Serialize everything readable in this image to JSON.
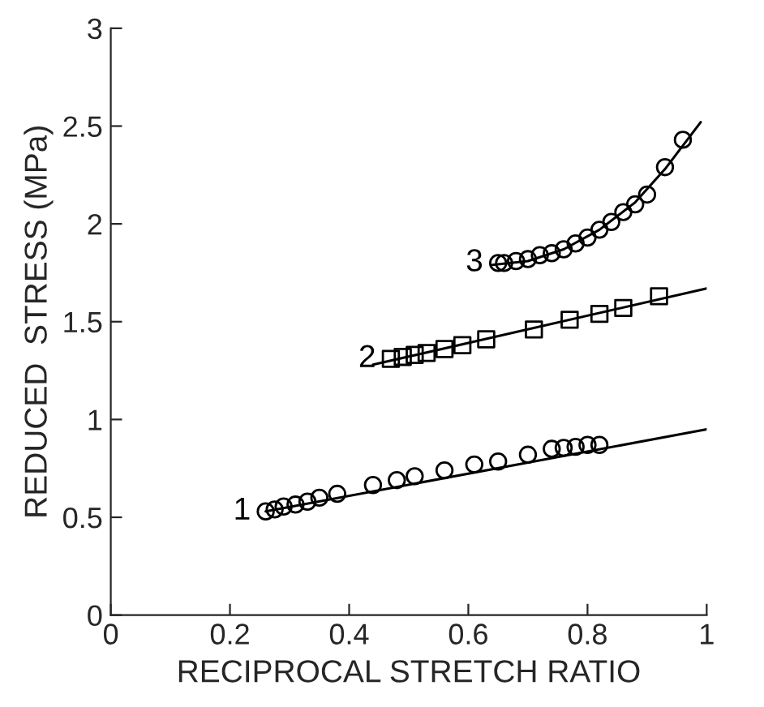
{
  "chart_data": {
    "type": "scatter",
    "xlabel": "RECIPROCAL STRETCH RATIO",
    "ylabel": "REDUCED  STRESS (MPa)",
    "xlim": [
      0,
      1
    ],
    "ylim": [
      0,
      3
    ],
    "xticks": [
      0,
      0.2,
      0.4,
      0.6,
      0.8,
      1
    ],
    "yticks": [
      0,
      0.5,
      1,
      1.5,
      2,
      2.5,
      3
    ],
    "grid": false,
    "legend": false,
    "series": [
      {
        "name": "1",
        "color": "#000000",
        "marker": "circle",
        "x": [
          0.26,
          0.275,
          0.29,
          0.31,
          0.33,
          0.35,
          0.38,
          0.44,
          0.48,
          0.51,
          0.56,
          0.61,
          0.65,
          0.7,
          0.74,
          0.76,
          0.78,
          0.8,
          0.82
        ],
        "values": [
          0.53,
          0.54,
          0.555,
          0.565,
          0.58,
          0.6,
          0.62,
          0.665,
          0.69,
          0.71,
          0.74,
          0.77,
          0.785,
          0.82,
          0.85,
          0.855,
          0.86,
          0.87,
          0.87
        ]
      },
      {
        "name": "2",
        "color": "#000000",
        "marker": "square",
        "x": [
          0.47,
          0.49,
          0.51,
          0.53,
          0.56,
          0.59,
          0.63,
          0.71,
          0.77,
          0.82,
          0.86,
          0.92
        ],
        "values": [
          1.31,
          1.32,
          1.33,
          1.34,
          1.36,
          1.38,
          1.41,
          1.46,
          1.51,
          1.54,
          1.57,
          1.63
        ]
      },
      {
        "name": "3",
        "color": "#000000",
        "marker": "circle",
        "x": [
          0.65,
          0.66,
          0.68,
          0.7,
          0.72,
          0.74,
          0.76,
          0.78,
          0.8,
          0.82,
          0.84,
          0.86,
          0.88,
          0.9,
          0.93,
          0.96
        ],
        "values": [
          1.8,
          1.8,
          1.81,
          1.82,
          1.84,
          1.85,
          1.87,
          1.9,
          1.93,
          1.97,
          2.01,
          2.06,
          2.1,
          2.15,
          2.29,
          2.43
        ]
      },
      {
        "type": "line",
        "color": "#000000",
        "line_style": "solid",
        "marker": "none",
        "x": [
          0.26,
          1.0
        ],
        "values": [
          0.53,
          0.95
        ]
      },
      {
        "type": "line",
        "color": "#000000",
        "line_style": "solid",
        "marker": "none",
        "x": [
          0.44,
          1.0
        ],
        "values": [
          1.28,
          1.67
        ]
      },
      {
        "type": "line",
        "color": "#000000",
        "line_style": "solid",
        "marker": "none",
        "x": [
          0.64,
          0.7,
          0.76,
          0.82,
          0.88,
          0.93,
          0.99
        ],
        "values": [
          1.79,
          1.81,
          1.87,
          1.97,
          2.11,
          2.28,
          2.52
        ]
      }
    ]
  }
}
